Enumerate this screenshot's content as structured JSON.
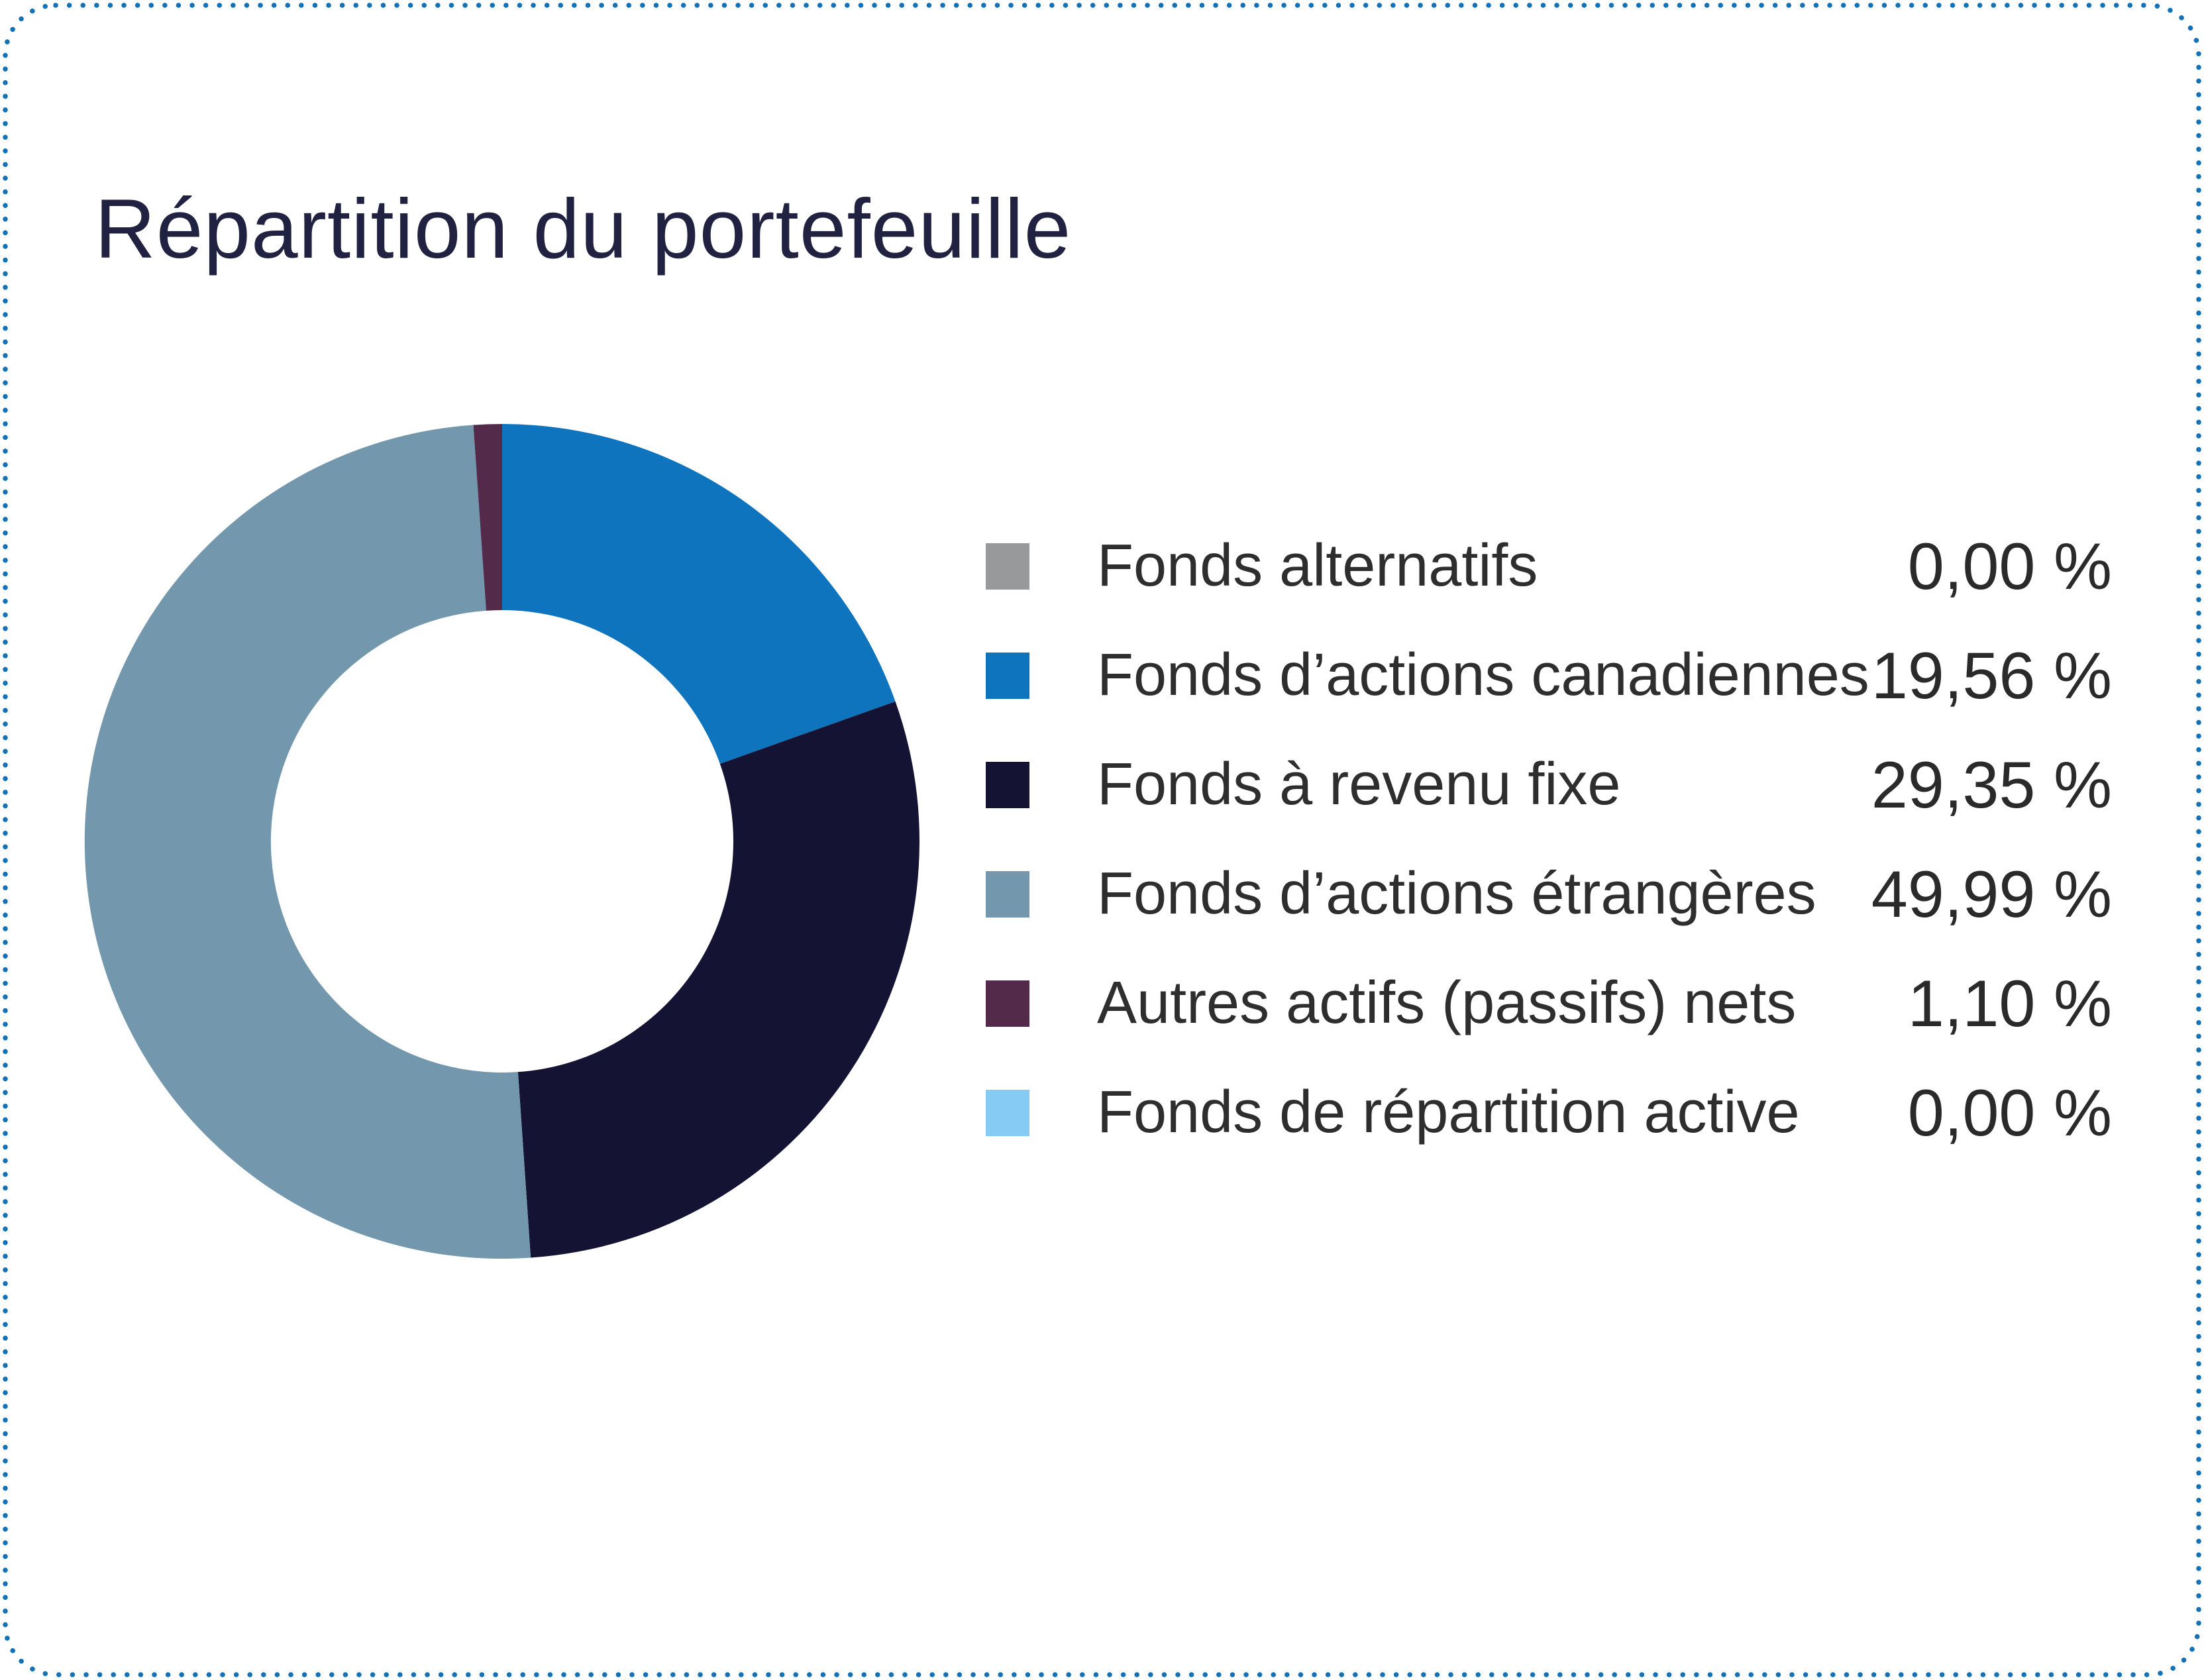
{
  "border": {
    "style": "dotted",
    "color": "#1371b8"
  },
  "chart_data": {
    "type": "pie",
    "subtype": "donut",
    "title": "Répartition du portefeuille",
    "legend_position": "right",
    "donut_hole_ratio": 0.554,
    "start_angle_deg": 0,
    "direction": "clockwise",
    "value_format": "french-percent",
    "series": [
      {
        "label": "Fonds alternatifs",
        "value": 0.0,
        "display": "0,00 %",
        "color": "#98999b"
      },
      {
        "label": "Fonds d’actions canadiennes",
        "value": 19.56,
        "display": "19,56 %",
        "color": "#0e74bd"
      },
      {
        "label": "Fonds à revenu fixe",
        "value": 29.35,
        "display": "29,35 %",
        "color": "#151334"
      },
      {
        "label": "Fonds d’actions étrangères",
        "value": 49.99,
        "display": "49,99 %",
        "color": "#7397ad"
      },
      {
        "label": "Autres actifs (passifs) nets",
        "value": 1.1,
        "display": "1,10 %",
        "color": "#542a4b"
      },
      {
        "label": "Fonds de répartition active",
        "value": 0.0,
        "display": "0,00 %",
        "color": "#86cbf3"
      }
    ]
  }
}
